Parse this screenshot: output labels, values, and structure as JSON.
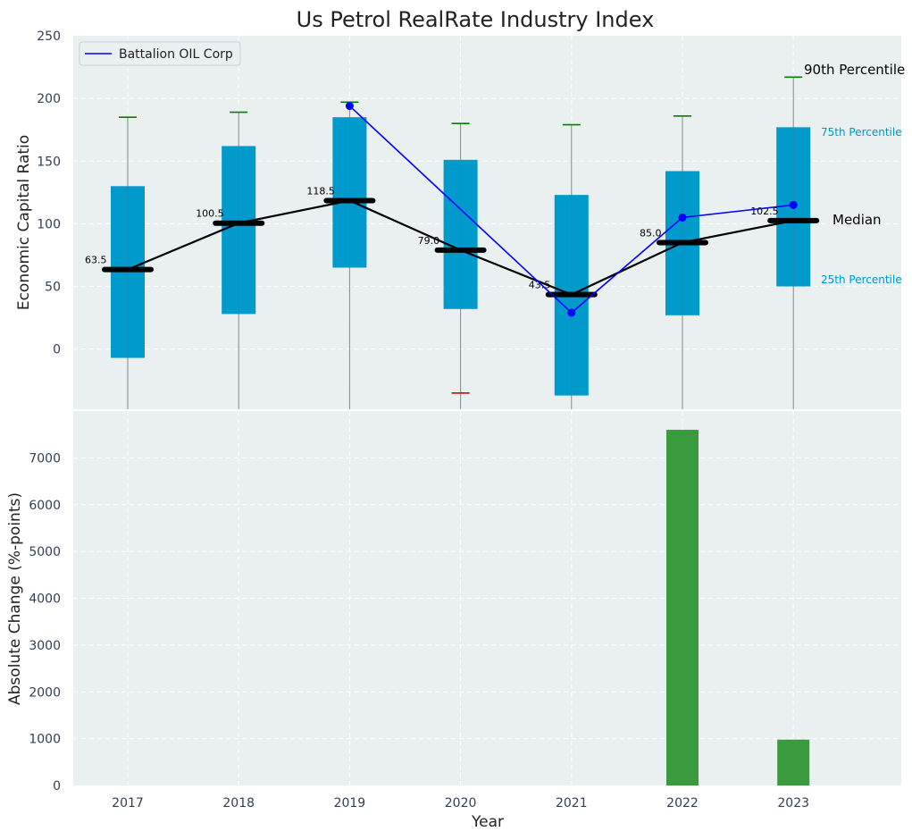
{
  "chart_data": [
    {
      "type": "box",
      "title": "Us Petrol RealRate Industry Index",
      "ylabel": "Economic Capital Ratio",
      "ylim": [
        -48,
        250
      ],
      "yticks": [
        0,
        50,
        100,
        150,
        200,
        250
      ],
      "grid": true,
      "legend": {
        "position": "top-left",
        "entries": [
          "Battalion OIL Corp"
        ]
      },
      "categories": [
        "2017",
        "2018",
        "2019",
        "2020",
        "2021",
        "2022",
        "2023"
      ],
      "boxes": [
        {
          "year": "2017",
          "p25": -7,
          "median": 63.5,
          "p75": 130,
          "p90": 185,
          "low_whisker_color": "green"
        },
        {
          "year": "2018",
          "p25": 28,
          "median": 100.5,
          "p75": 162,
          "p90": 189
        },
        {
          "year": "2019",
          "p25": 65,
          "median": 118.5,
          "p75": 185,
          "p90": 197
        },
        {
          "year": "2020",
          "p25": 32,
          "median": 79.0,
          "p75": 151,
          "p90": 180,
          "p10": -35
        },
        {
          "year": "2021",
          "p25": -37,
          "median": 43.5,
          "p75": 123,
          "p90": 179
        },
        {
          "year": "2022",
          "p25": 27,
          "median": 85.0,
          "p75": 142,
          "p90": 186
        },
        {
          "year": "2023",
          "p25": 50,
          "median": 102.5,
          "p75": 177,
          "p90": 217
        }
      ],
      "median_labels": [
        "63.5",
        "100.5",
        "118.5",
        "79.0",
        "43.5",
        "85.0",
        "102.5"
      ],
      "series": [
        {
          "name": "Battalion OIL Corp",
          "color": "#0000ff",
          "x": [
            "2019",
            "2021",
            "2022",
            "2023"
          ],
          "values": [
            194,
            29,
            105,
            115
          ]
        }
      ],
      "annotations": {
        "p90": "90th Percentile",
        "p75": "75th Percentile",
        "median": "Median",
        "p25": "25th Percentile"
      }
    },
    {
      "type": "bar",
      "xlabel": "Year",
      "ylabel": "Absolute Change (%-points)",
      "ylim": [
        0,
        8000
      ],
      "yticks": [
        0,
        1000,
        2000,
        3000,
        4000,
        5000,
        6000,
        7000
      ],
      "grid": true,
      "categories": [
        "2017",
        "2018",
        "2019",
        "2020",
        "2021",
        "2022",
        "2023"
      ],
      "values": [
        null,
        null,
        null,
        null,
        null,
        7600,
        980
      ],
      "color": "#3a9a3e"
    }
  ],
  "colors": {
    "panel_bg": "#eaeff0",
    "box": "#009acd",
    "median_line": "#000000",
    "whisker_cap_high": "#008000",
    "whisker_cap_low": "#e00000",
    "annotation_blue": "#0099cc"
  }
}
